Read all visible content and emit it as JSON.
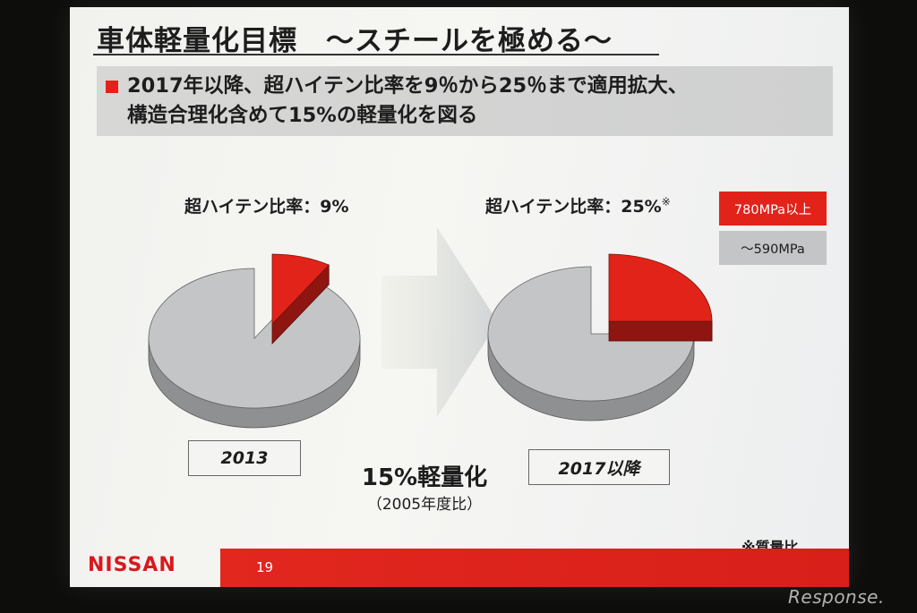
{
  "slide": {
    "title": "車体軽量化目標　～スチールを極める～",
    "bullet_lines": [
      "2017年以降、超ハイテン比率を9％から25％まで適用拡大、",
      "構造合理化含めて15%の軽量化を図る"
    ],
    "reduction": {
      "main": "15%軽量化",
      "sub": "（2005年度比）"
    },
    "note": "※質量比",
    "logo": "NISSAN",
    "page_number": "19",
    "watermark": "Response."
  },
  "colors": {
    "high_tensile": "#e2231a",
    "other_steel": "#c4c5c7",
    "footer": "#e1271e",
    "logo": "#d7191f"
  },
  "chart_data": [
    {
      "type": "pie",
      "title": "超ハイテン比率：9%",
      "title_note": "",
      "category_label": "2013",
      "slices": [
        {
          "name": "780MPa以上",
          "value": 9
        },
        {
          "name": "～590MPa",
          "value": 91
        }
      ],
      "legend": "top-right"
    },
    {
      "type": "pie",
      "title": "超ハイテン比率：25%",
      "title_note": "※",
      "category_label": "2017以降",
      "slices": [
        {
          "name": "780MPa以上",
          "value": 25
        },
        {
          "name": "～590MPa",
          "value": 75
        }
      ],
      "legend": "top-right"
    }
  ]
}
